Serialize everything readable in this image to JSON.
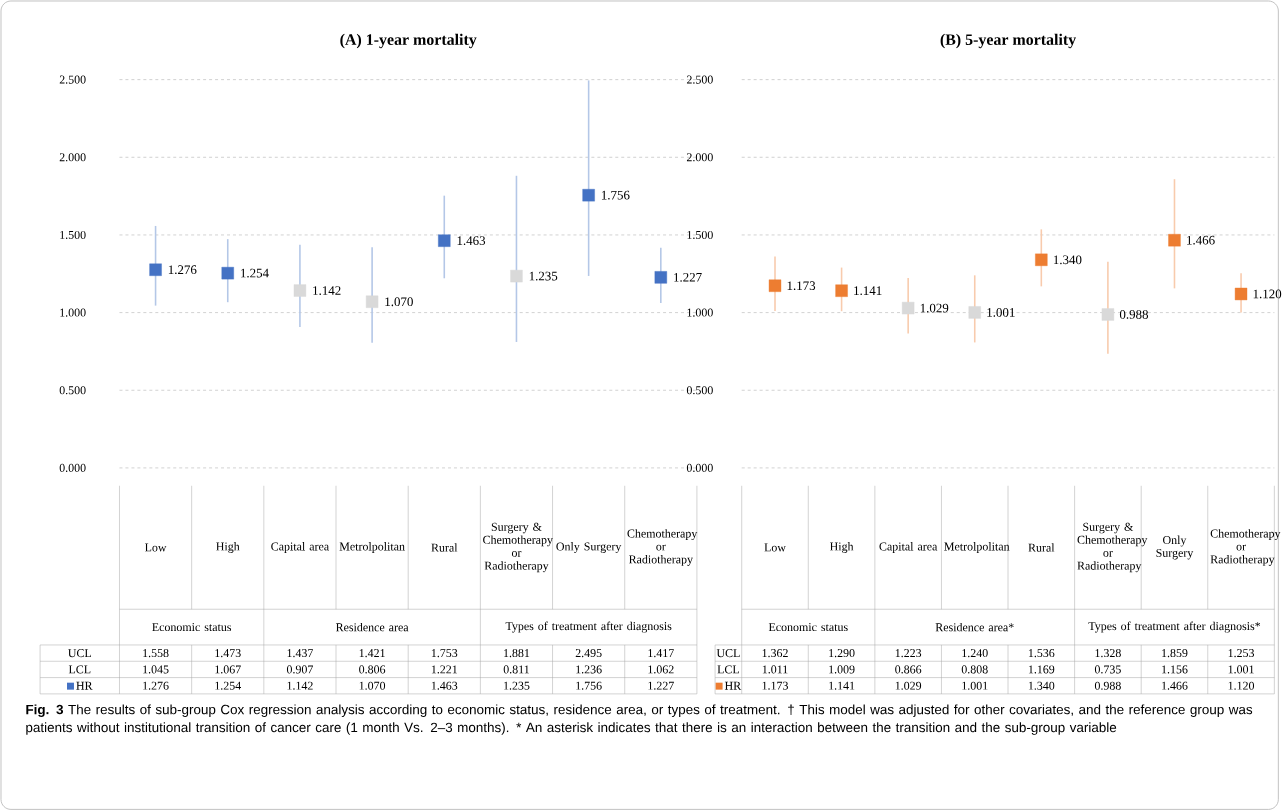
{
  "chart_data": [
    {
      "type": "scatter",
      "title": "(A) 1-year mortality",
      "categories": [
        "Low",
        "High",
        "Capital area",
        "Metrolpolitan",
        "Rural",
        "Surgery & Chemotherapy or Radiotherapy",
        "Only Surgery",
        "Chemotherapy or Radiotherapy"
      ],
      "series": [
        {
          "name": "HR",
          "color": "#4472c4",
          "colors": [
            "#4472c4",
            "#4472c4",
            "#d9d9d9",
            "#d9d9d9",
            "#4472c4",
            "#d9d9d9",
            "#4472c4",
            "#4472c4"
          ],
          "values": [
            1.276,
            1.254,
            1.142,
            1.07,
            1.463,
            1.235,
            1.756,
            1.227
          ],
          "value_labels": [
            "1.276",
            "1.254",
            "1.142",
            "1.070",
            "1.463",
            "1.235",
            "1.756",
            "1.227"
          ],
          "errors": [
            [
              1.045,
              1.558
            ],
            [
              1.067,
              1.473
            ],
            [
              0.907,
              1.437
            ],
            [
              0.806,
              1.421
            ],
            [
              1.221,
              1.753
            ],
            [
              0.811,
              1.881
            ],
            [
              1.236,
              2.495
            ],
            [
              1.062,
              1.417
            ]
          ]
        }
      ],
      "ylim": [
        0,
        2.5
      ],
      "yticks": [
        {
          "value": 0,
          "label": "0.000"
        },
        {
          "value": 0.5,
          "label": "0.500"
        },
        {
          "value": 1,
          "label": "1.000"
        },
        {
          "value": 1.5,
          "label": "1.500"
        },
        {
          "value": 2,
          "label": "2.000"
        },
        {
          "value": 2.5,
          "label": "2.500"
        }
      ],
      "grid": "y",
      "legend": "bottom",
      "marker": "square",
      "annotations": [
        "Economic status",
        "Residence area",
        "Types of treatment after diagnosis",
        "UCL",
        "1.558",
        "1.473",
        "1.437",
        "1.421",
        "1.753",
        "1.881",
        "2.495",
        "1.417",
        "LCL",
        "1.045",
        "1.067",
        "0.907",
        "0.806",
        "1.221",
        "0.811",
        "1.236",
        "1.062"
      ]
    },
    {
      "type": "scatter",
      "title": "(B) 5-year mortality",
      "categories": [
        "Low",
        "High",
        "Capital area",
        "Metrolpolitan",
        "Rural",
        "Surgery & Chemotherapy or Radiotherapy",
        "Only Surgery",
        "Chemotherapy or Radiotherapy"
      ],
      "series": [
        {
          "name": "HR",
          "color": "#ed7d31",
          "colors": [
            "#ed7d31",
            "#ed7d31",
            "#d9d9d9",
            "#d9d9d9",
            "#ed7d31",
            "#d9d9d9",
            "#ed7d31",
            "#ed7d31"
          ],
          "values": [
            1.173,
            1.141,
            1.029,
            1.001,
            1.34,
            0.988,
            1.466,
            1.12
          ],
          "value_labels": [
            "1.173",
            "1.141",
            "1.029",
            "1.001",
            "1.340",
            "0.988",
            "1.466",
            "1.120"
          ],
          "errors": [
            [
              1.011,
              1.362
            ],
            [
              1.009,
              1.29
            ],
            [
              0.866,
              1.223
            ],
            [
              0.808,
              1.24
            ],
            [
              1.169,
              1.536
            ],
            [
              0.735,
              1.328
            ],
            [
              1.156,
              1.859
            ],
            [
              1.001,
              1.253
            ]
          ]
        }
      ],
      "ylim": [
        0,
        2.5
      ],
      "yticks": [
        {
          "value": 0,
          "label": "0.000"
        },
        {
          "value": 0.5,
          "label": "0.500"
        },
        {
          "value": 1,
          "label": "1.000"
        },
        {
          "value": 1.5,
          "label": "1.500"
        },
        {
          "value": 2,
          "label": "2.000"
        },
        {
          "value": 2.5,
          "label": "2.500"
        }
      ],
      "grid": "y",
      "legend": "bottom",
      "marker": "square",
      "annotations": [
        "Economic status",
        "Residence area*",
        "Types of treatment after diagnosis*",
        "UCL",
        "1.362",
        "1.290",
        "1.223",
        "1.240",
        "1.536",
        "1.328",
        "1.859",
        "1.253",
        "LCL",
        "1.011",
        "1.009",
        "0.866",
        "0.808",
        "1.169",
        "0.735",
        "1.156",
        "1.001",
        "**Fig. 3** The results of sub-group Cox regression analysis according to economic status, residence area, or types of treatment. † This model was adjusted for other covariates, and the reference group was patients without institutional transition of cancer care (1 month Vs. 2–3 months). * An asterisk indicates that there is an interaction between the transition and the sub-group variable"
      ]
    }
  ]
}
